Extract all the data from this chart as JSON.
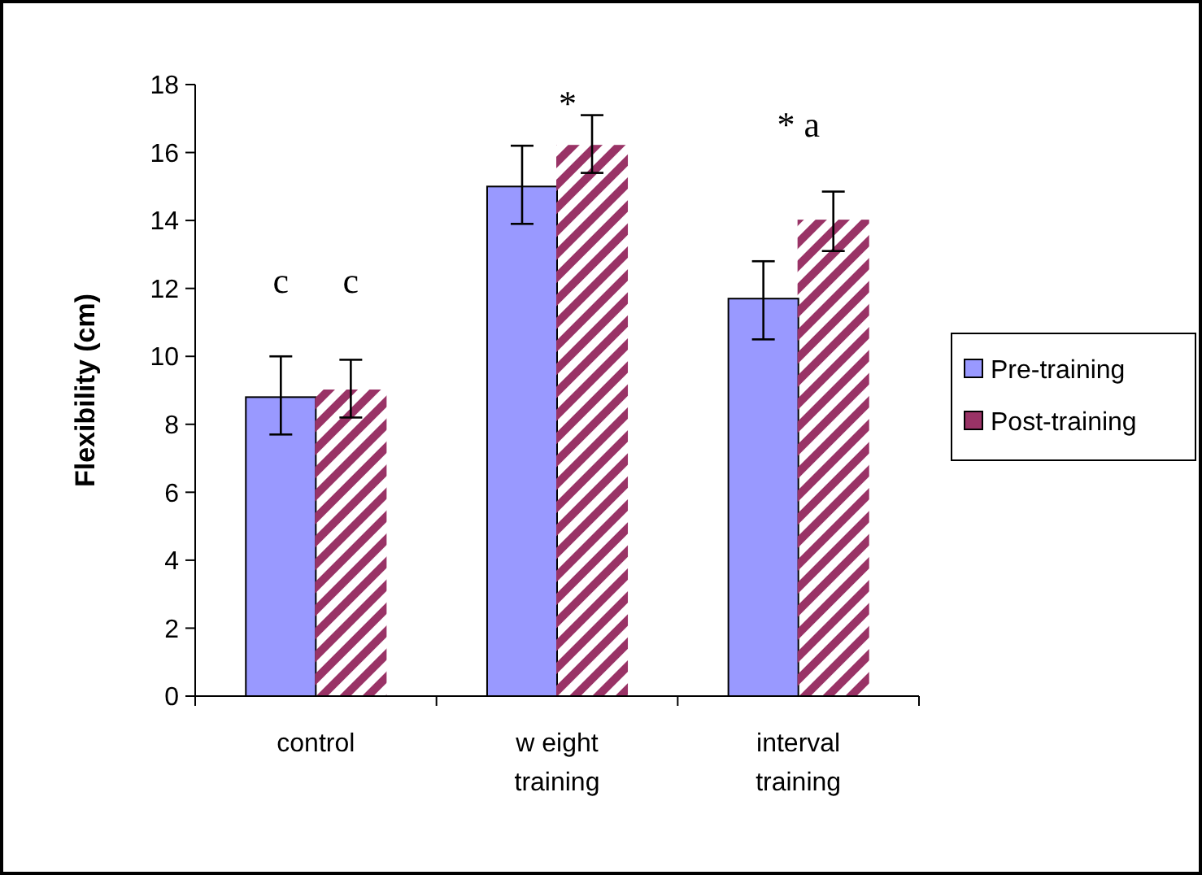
{
  "chart_data": {
    "type": "bar",
    "ylabel": "Flexibility (cm)",
    "categories": [
      "control",
      "w eight\ntraining",
      "interval\ntraining"
    ],
    "series": [
      {
        "name": "Pre-training",
        "color": "#9999ff",
        "values": [
          8.8,
          15.0,
          11.7
        ],
        "errors": [
          [
            7.7,
            10.0
          ],
          [
            13.9,
            16.2
          ],
          [
            10.5,
            12.8
          ]
        ]
      },
      {
        "name": "Post-training",
        "color": "#993366",
        "values": [
          9.0,
          16.2,
          14.0
        ],
        "errors": [
          [
            8.2,
            9.9
          ],
          [
            15.4,
            17.1
          ],
          [
            13.1,
            14.85
          ]
        ]
      }
    ],
    "ylim": [
      0,
      18
    ],
    "yticks": [
      0,
      2,
      4,
      6,
      8,
      10,
      12,
      14,
      16,
      18
    ],
    "legend": "right",
    "annotations": [
      "c",
      "c",
      "*",
      "* a"
    ]
  }
}
